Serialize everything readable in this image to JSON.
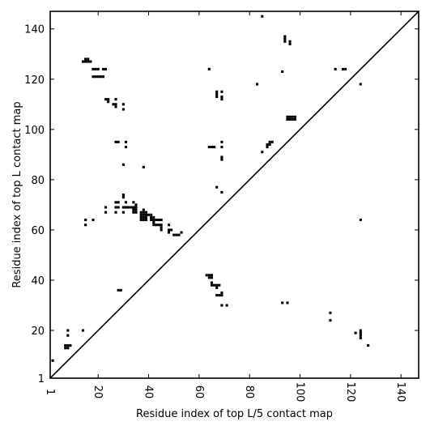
{
  "chart_data": {
    "type": "heatmap",
    "title": "",
    "xlabel": "Residue index of top L/5 contact map",
    "ylabel": "Residue index of top L contact map",
    "xlim": [
      1,
      147
    ],
    "ylim": [
      1,
      147
    ],
    "x_ticks": [
      1,
      20,
      40,
      60,
      80,
      100,
      120,
      140
    ],
    "y_ticks": [
      1,
      20,
      40,
      60,
      80,
      100,
      120,
      140
    ],
    "x_tick_labels": [
      "1",
      "20",
      "40",
      "60",
      "80",
      "100",
      "120",
      "140"
    ],
    "y_tick_labels": [
      "1",
      "20",
      "40",
      "60",
      "80",
      "100",
      "120",
      "140"
    ],
    "diagonal": true,
    "cell_color": "#000000",
    "upper_triangle_contacts": [
      [
        14,
        127
      ],
      [
        15,
        127
      ],
      [
        16,
        127
      ],
      [
        17,
        127
      ],
      [
        15,
        128
      ],
      [
        16,
        128
      ],
      [
        18,
        124
      ],
      [
        19,
        124
      ],
      [
        20,
        124
      ],
      [
        22,
        124
      ],
      [
        23,
        124
      ],
      [
        18,
        121
      ],
      [
        19,
        121
      ],
      [
        20,
        121
      ],
      [
        21,
        121
      ],
      [
        22,
        121
      ],
      [
        23,
        112
      ],
      [
        24,
        112
      ],
      [
        24,
        111
      ],
      [
        27,
        112
      ],
      [
        26,
        110
      ],
      [
        27,
        110
      ],
      [
        27,
        109
      ],
      [
        30,
        110
      ],
      [
        30,
        108
      ],
      [
        27,
        95
      ],
      [
        28,
        95
      ],
      [
        31,
        95
      ],
      [
        31,
        93
      ],
      [
        30,
        86
      ],
      [
        38,
        85
      ],
      [
        30,
        74
      ],
      [
        30,
        73
      ],
      [
        27,
        71
      ],
      [
        28,
        71
      ],
      [
        31,
        71
      ],
      [
        34,
        71
      ],
      [
        23,
        69
      ],
      [
        27,
        69
      ],
      [
        28,
        69
      ],
      [
        30,
        69
      ],
      [
        31,
        69
      ],
      [
        32,
        69
      ],
      [
        33,
        69
      ],
      [
        34,
        69
      ],
      [
        35,
        69
      ],
      [
        23,
        67
      ],
      [
        27,
        67
      ],
      [
        30,
        67
      ],
      [
        34,
        67
      ],
      [
        35,
        67
      ],
      [
        34,
        68
      ],
      [
        35,
        68
      ],
      [
        35,
        70
      ],
      [
        37,
        67
      ],
      [
        38,
        67
      ],
      [
        39,
        67
      ],
      [
        37,
        66
      ],
      [
        38,
        66
      ],
      [
        39,
        66
      ],
      [
        40,
        66
      ],
      [
        37,
        65
      ],
      [
        38,
        65
      ],
      [
        39,
        65
      ],
      [
        37,
        64
      ],
      [
        38,
        64
      ],
      [
        39,
        64
      ],
      [
        38,
        68
      ],
      [
        41,
        66
      ],
      [
        41,
        65
      ],
      [
        42,
        65
      ],
      [
        41,
        64
      ],
      [
        42,
        64
      ],
      [
        43,
        64
      ],
      [
        44,
        64
      ],
      [
        45,
        64
      ],
      [
        42,
        63
      ],
      [
        42,
        62
      ],
      [
        43,
        62
      ],
      [
        44,
        62
      ],
      [
        45,
        62
      ],
      [
        45,
        61
      ],
      [
        45,
        60
      ],
      [
        48,
        62
      ],
      [
        48,
        60
      ],
      [
        49,
        60
      ],
      [
        48,
        59
      ],
      [
        50,
        58
      ],
      [
        51,
        58
      ],
      [
        52,
        58
      ],
      [
        53,
        59
      ],
      [
        15,
        64
      ],
      [
        15,
        62
      ],
      [
        18,
        64
      ],
      [
        64,
        124
      ],
      [
        67,
        115
      ],
      [
        67,
        114
      ],
      [
        67,
        113
      ],
      [
        69,
        115
      ],
      [
        69,
        113
      ],
      [
        69,
        112
      ],
      [
        64,
        93
      ],
      [
        65,
        93
      ],
      [
        66,
        93
      ],
      [
        69,
        95
      ],
      [
        69,
        93
      ],
      [
        69,
        89
      ],
      [
        69,
        88
      ],
      [
        67,
        77
      ],
      [
        69,
        75
      ],
      [
        83,
        118
      ],
      [
        85,
        145
      ],
      [
        85,
        91
      ],
      [
        87,
        93
      ],
      [
        87,
        94
      ],
      [
        88,
        94
      ],
      [
        88,
        95
      ],
      [
        89,
        95
      ],
      [
        93,
        123
      ],
      [
        94,
        137
      ],
      [
        94,
        136
      ],
      [
        94,
        135
      ],
      [
        96,
        135
      ],
      [
        96,
        134
      ],
      [
        95,
        105
      ],
      [
        96,
        105
      ],
      [
        97,
        105
      ],
      [
        98,
        105
      ],
      [
        95,
        104
      ],
      [
        96,
        104
      ],
      [
        97,
        104
      ],
      [
        98,
        104
      ],
      [
        114,
        124
      ],
      [
        117,
        124
      ],
      [
        118,
        124
      ],
      [
        124,
        118
      ],
      [
        124,
        64
      ]
    ],
    "lower_triangle_contacts": [
      [
        2,
        8
      ],
      [
        7,
        14
      ],
      [
        8,
        14
      ],
      [
        9,
        14
      ],
      [
        7,
        13
      ],
      [
        8,
        13
      ],
      [
        8,
        18
      ],
      [
        8,
        20
      ],
      [
        14,
        20
      ],
      [
        28,
        36
      ],
      [
        29,
        36
      ],
      [
        63,
        42
      ],
      [
        64,
        42
      ],
      [
        65,
        42
      ],
      [
        64,
        41
      ],
      [
        65,
        41
      ],
      [
        65,
        39
      ],
      [
        65,
        38
      ],
      [
        66,
        38
      ],
      [
        67,
        38
      ],
      [
        68,
        38
      ],
      [
        67,
        37
      ],
      [
        67,
        34
      ],
      [
        68,
        34
      ],
      [
        69,
        34
      ],
      [
        69,
        35
      ],
      [
        69,
        30
      ],
      [
        71,
        30
      ],
      [
        93,
        31
      ],
      [
        95,
        31
      ],
      [
        112,
        27
      ],
      [
        112,
        24
      ],
      [
        122,
        19
      ],
      [
        124,
        20
      ],
      [
        124,
        19
      ],
      [
        124,
        18
      ],
      [
        124,
        17
      ],
      [
        127,
        14
      ]
    ]
  }
}
